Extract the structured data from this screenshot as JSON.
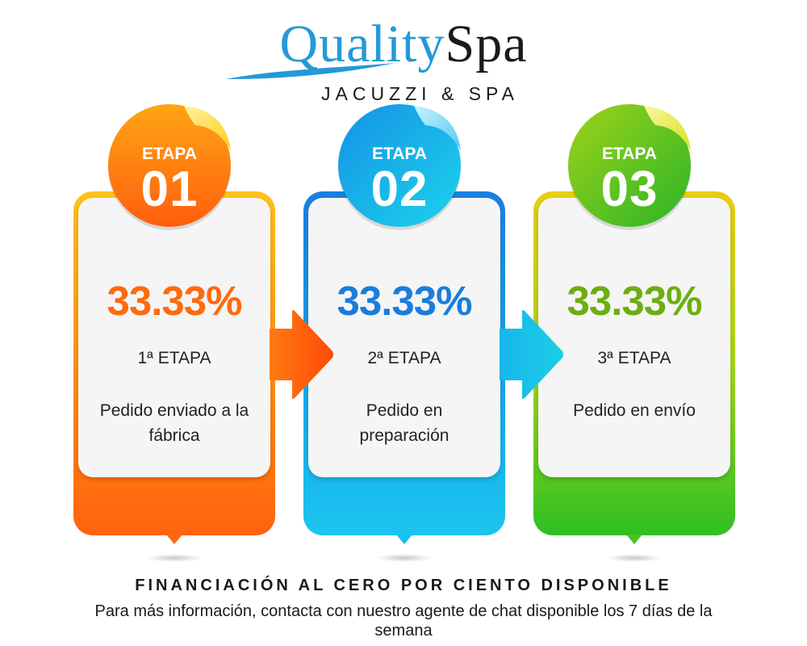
{
  "logo": {
    "brand_a": "Quality",
    "brand_b": "Spa",
    "tagline": "JACUZZI & SPA",
    "colors": {
      "brand_blue": "#2499d8",
      "brand_dark": "#1a1a1a"
    }
  },
  "stages": [
    {
      "badge_label": "ETAPA",
      "badge_number": "01",
      "percent": "33.33%",
      "stage_label": "1ª ETAPA",
      "description": "Pedido enviado a la fábrica",
      "color": "#ff6a0d"
    },
    {
      "badge_label": "ETAPA",
      "badge_number": "02",
      "percent": "33.33%",
      "stage_label": "2ª ETAPA",
      "description": "Pedido en preparación",
      "color": "#1a7ddc"
    },
    {
      "badge_label": "ETAPA",
      "badge_number": "03",
      "percent": "33.33%",
      "stage_label": "3ª ETAPA",
      "description": "Pedido en envío",
      "color": "#6cae10"
    }
  ],
  "footer": {
    "title": "FINANCIACIÓN AL CERO POR CIENTO DISPONIBLE",
    "text": "Para más información, contacta con nuestro agente de chat disponible los 7 días de la semana"
  }
}
